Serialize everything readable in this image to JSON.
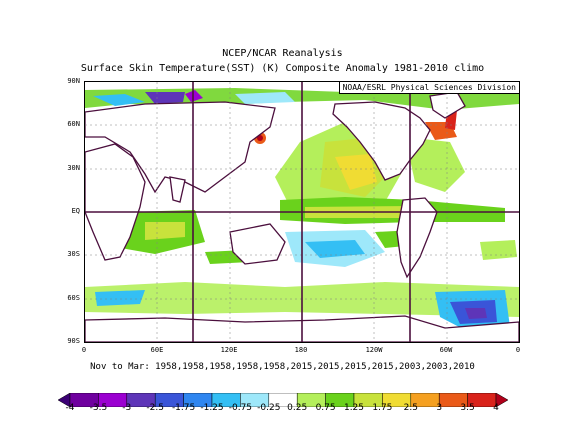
{
  "header": {
    "title": "NCEP/NCAR Reanalysis",
    "subtitle": "Surface Skin Temperature(SST) (K) Composite Anomaly 1981-2010 climo"
  },
  "map": {
    "credit": "NOAA/ESRL Physical Sciences Division",
    "lat_labels": [
      "90N",
      "60N",
      "30N",
      "EQ",
      "30S",
      "60S",
      "90S"
    ],
    "lon_labels": [
      "0",
      "60E",
      "120E",
      "180",
      "120W",
      "60W",
      "0"
    ]
  },
  "composite": {
    "description": "Nov to Mar: 1958,1958,1958,1958,1958,2015,2015,2015,2015,2003,2003,2010"
  },
  "colorbar": {
    "labels": [
      "-4",
      "-3.5",
      "-3",
      "-2.5",
      "-1.75",
      "-1.25",
      "-0.75",
      "-0.25",
      "0.25",
      "0.75",
      "1.25",
      "1.75",
      "2.5",
      "3",
      "3.5",
      "4"
    ],
    "colors": [
      "#3b0074",
      "#6f009f",
      "#9b00d1",
      "#5e35b8",
      "#3a55d8",
      "#2f86f0",
      "#34bff4",
      "#9ee8fa",
      "#ffffff",
      "#b4ef5b",
      "#6ad21c",
      "#c8e23c",
      "#f0dc33",
      "#f5a020",
      "#ea5a18",
      "#d9231b",
      "#b0001a"
    ]
  }
}
